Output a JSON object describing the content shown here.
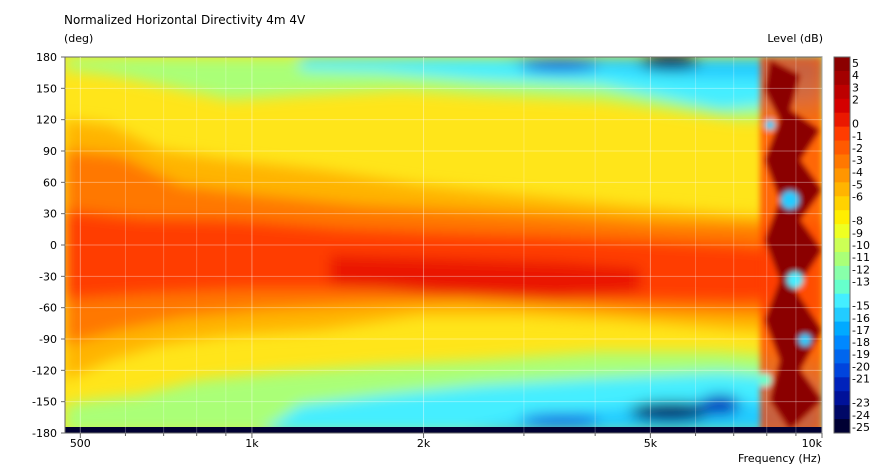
{
  "chart_data": {
    "type": "heatmap",
    "title": "Normalized Horizontal Directivity 4m 4V",
    "ylabel": "(deg)",
    "xlabel": "Frequency  (Hz)",
    "colorbar_label": "Level  (dB)",
    "x_scale": "log",
    "xlim": [
      470,
      10000
    ],
    "ylim": [
      -180,
      180
    ],
    "y_ticks": [
      180,
      150,
      120,
      90,
      60,
      30,
      0,
      -30,
      -60,
      -90,
      -120,
      -150,
      -180
    ],
    "x_ticks": [
      {
        "value": 500,
        "label": "500"
      },
      {
        "value": 1000,
        "label": "1k"
      },
      {
        "value": 2000,
        "label": "2k"
      },
      {
        "value": 5000,
        "label": "5k"
      },
      {
        "value": 10000,
        "label": "10k"
      }
    ],
    "x_minor_ticks": [
      600,
      700,
      800,
      900,
      3000,
      4000,
      6000,
      7000,
      8000,
      9000
    ],
    "colorbar_levels": [
      "5",
      "4",
      "3",
      "2",
      "0",
      "-1",
      "-2",
      "-3",
      "-4",
      "-5",
      "-6",
      "-8",
      "-9",
      "-10",
      "-11",
      "-12",
      "-13",
      "-15",
      "-16",
      "-17",
      "-18",
      "-19",
      "-20",
      "-21",
      "-23",
      "-24",
      "-25"
    ],
    "colorbar_colors": [
      "#8b0000",
      "#a30000",
      "#bd0000",
      "#d40000",
      "#ea1800",
      "#ff3c00",
      "#ff5a00",
      "#ff7800",
      "#ff9600",
      "#ffb400",
      "#ffd200",
      "#ffee00",
      "#eeff22",
      "#ccff55",
      "#aaff77",
      "#88ffaa",
      "#66ffcc",
      "#44eeff",
      "#22ccff",
      "#00aaff",
      "#0088ff",
      "#0066ee",
      "#0044dd",
      "#0022bb",
      "#001199",
      "#000866",
      "#000033"
    ],
    "grid": true,
    "series": [
      {
        "freq": 500,
        "angle": 0,
        "level_db": -1
      },
      {
        "freq": 500,
        "angle": 60,
        "level_db": -2
      },
      {
        "freq": 500,
        "angle": 120,
        "level_db": -6
      },
      {
        "freq": 500,
        "angle": 180,
        "level_db": -7
      },
      {
        "freq": 1000,
        "angle": 0,
        "level_db": -1
      },
      {
        "freq": 1000,
        "angle": 90,
        "level_db": -5
      },
      {
        "freq": 1000,
        "angle": 150,
        "level_db": -9
      },
      {
        "freq": 1000,
        "angle": -150,
        "level_db": -9
      },
      {
        "freq": 2000,
        "angle": 0,
        "level_db": -1
      },
      {
        "freq": 2000,
        "angle": -30,
        "level_db": 0
      },
      {
        "freq": 2000,
        "angle": 90,
        "level_db": -7
      },
      {
        "freq": 2000,
        "angle": 150,
        "level_db": -12
      },
      {
        "freq": 5000,
        "angle": 0,
        "level_db": -1
      },
      {
        "freq": 5000,
        "angle": -30,
        "level_db": 0
      },
      {
        "freq": 5000,
        "angle": 120,
        "level_db": -14
      },
      {
        "freq": 5000,
        "angle": 180,
        "level_db": -25
      },
      {
        "freq": 5000,
        "angle": -160,
        "level_db": -25
      },
      {
        "freq": 9000,
        "angle": 0,
        "level_db": -3
      },
      {
        "freq": 9000,
        "angle": 150,
        "level_db": 3
      },
      {
        "freq": 9000,
        "angle": -120,
        "level_db": 2
      }
    ]
  }
}
